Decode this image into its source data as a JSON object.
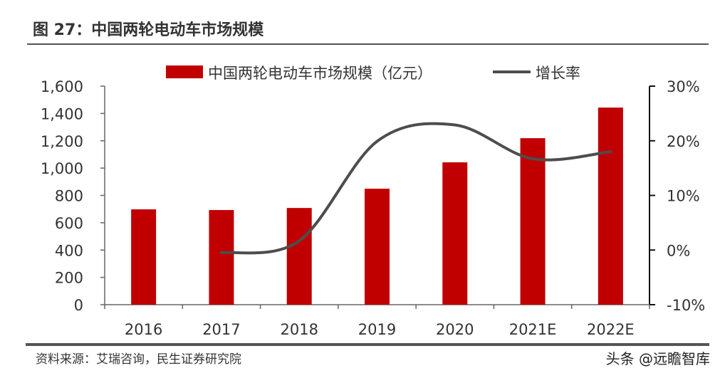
{
  "title": "图 27：中国两轮电动车市场规模",
  "source": "资料来源：艾瑞咨询，民生证券研究院",
  "watermark": "头条 @远瞻智库",
  "colors": {
    "bar": "#C00000",
    "line": "#4D4D4D"
  },
  "chart_data": {
    "type": "bar+line",
    "categories": [
      "2016",
      "2017",
      "2018",
      "2019",
      "2020",
      "2021E",
      "2022E"
    ],
    "series": [
      {
        "name": "中国两轮电动车市场规模（亿元）",
        "type": "bar",
        "axis": "left",
        "values": [
          698,
          693,
          708,
          849,
          1042,
          1219,
          1443
        ]
      },
      {
        "name": "增长率",
        "type": "line",
        "axis": "right",
        "smooth": true,
        "values": [
          null,
          -0.5,
          1.7,
          19.9,
          22.9,
          16.7,
          18.0
        ]
      }
    ],
    "left_axis": {
      "range": [
        0,
        1600
      ],
      "ticks": [
        "0",
        "200",
        "400",
        "600",
        "800",
        "1,000",
        "1,200",
        "1,400",
        "1,600"
      ]
    },
    "right_axis": {
      "range": [
        -10,
        30
      ],
      "ticks": [
        "-10%",
        "0%",
        "10%",
        "20%",
        "30%"
      ]
    },
    "legend": "top",
    "grid": false
  }
}
